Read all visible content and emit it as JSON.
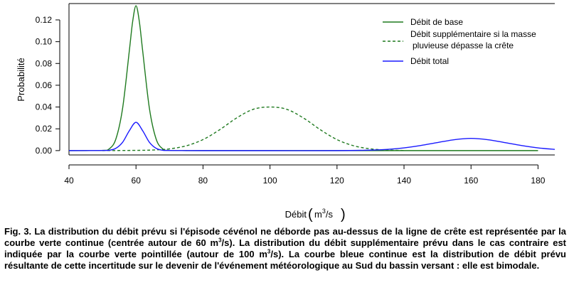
{
  "chart_data": {
    "type": "line",
    "xlabel": "Débit",
    "xlabel_unit": "m3/s",
    "ylabel": "Probabilité",
    "xlim": [
      40,
      185
    ],
    "ylim": [
      -0.004,
      0.135
    ],
    "x_ticks": [
      40,
      60,
      80,
      100,
      120,
      140,
      160,
      180
    ],
    "y_ticks": [
      0.0,
      0.02,
      0.04,
      0.06,
      0.08,
      0.1,
      0.12
    ],
    "y_tick_labels": [
      "0.00",
      "0.02",
      "0.04",
      "0.06",
      "0.08",
      "0.10",
      "0.12"
    ],
    "legend_position": "top-right",
    "series": [
      {
        "name": "Débit de base",
        "color": "#1f7a1f",
        "style": "solid",
        "x": [
          40,
          45,
          50,
          52,
          54,
          56,
          58,
          59,
          60,
          61,
          62,
          64,
          66,
          68,
          70,
          75,
          80,
          100,
          140,
          180
        ],
        "y": [
          0.0,
          0.0,
          0.0002,
          0.0015,
          0.0107,
          0.0388,
          0.0914,
          0.1184,
          0.133,
          0.1184,
          0.0914,
          0.0388,
          0.0107,
          0.0015,
          0.0002,
          0.0,
          0.0,
          0.0,
          0.0,
          0.0
        ]
      },
      {
        "name": "Débit supplémentaire si la masse pluvieuse dépasse la crête",
        "name_lines": [
          "Débit supplémentaire si la masse",
          "pluvieuse dépasse la crête"
        ],
        "color": "#1f7a1f",
        "style": "dashed",
        "x": [
          50,
          60,
          65,
          70,
          75,
          80,
          85,
          90,
          95,
          100,
          105,
          110,
          115,
          120,
          125,
          130,
          135,
          140
        ],
        "y": [
          0.0,
          0.0002,
          0.0005,
          0.0016,
          0.0044,
          0.0101,
          0.0192,
          0.0299,
          0.0379,
          0.04,
          0.0379,
          0.0299,
          0.0192,
          0.0101,
          0.0044,
          0.0016,
          0.0005,
          0.0001
        ]
      },
      {
        "name": "Débit total",
        "color": "#1a1aff",
        "style": "solid",
        "x": [
          40,
          50,
          52,
          54,
          56,
          58,
          60,
          62,
          64,
          66,
          68,
          70,
          80,
          100,
          120,
          130,
          135,
          140,
          145,
          150,
          155,
          160,
          165,
          170,
          175,
          180,
          185
        ],
        "y": [
          0.0,
          0.0001,
          0.0003,
          0.0021,
          0.0076,
          0.0182,
          0.026,
          0.0182,
          0.0076,
          0.0021,
          0.0003,
          0.0001,
          0.0,
          0.0,
          0.0,
          0.0004,
          0.0011,
          0.0025,
          0.0047,
          0.0074,
          0.01,
          0.0112,
          0.01,
          0.0074,
          0.0047,
          0.0025,
          0.0011
        ]
      }
    ]
  },
  "caption": {
    "part1": "Fig. 3. La distribution du débit prévu si l'épisode cévénol ne déborde pas au-dessus de la ligne de crête est représentée par la courbe verte continue (centrée autour de 60 m",
    "sup1": "3",
    "part2": "/s). La distribution du débit supplémentaire prévu dans le cas contraire est indiquée par la courbe verte pointillée (autour de 100 m",
    "sup2": "3",
    "part3": "/s). La courbe bleue continue est la distribution de débit prévu résultante de cette incertitude sur le devenir de l'événement météorologique au Sud du bassin versant : elle est bimodale."
  }
}
